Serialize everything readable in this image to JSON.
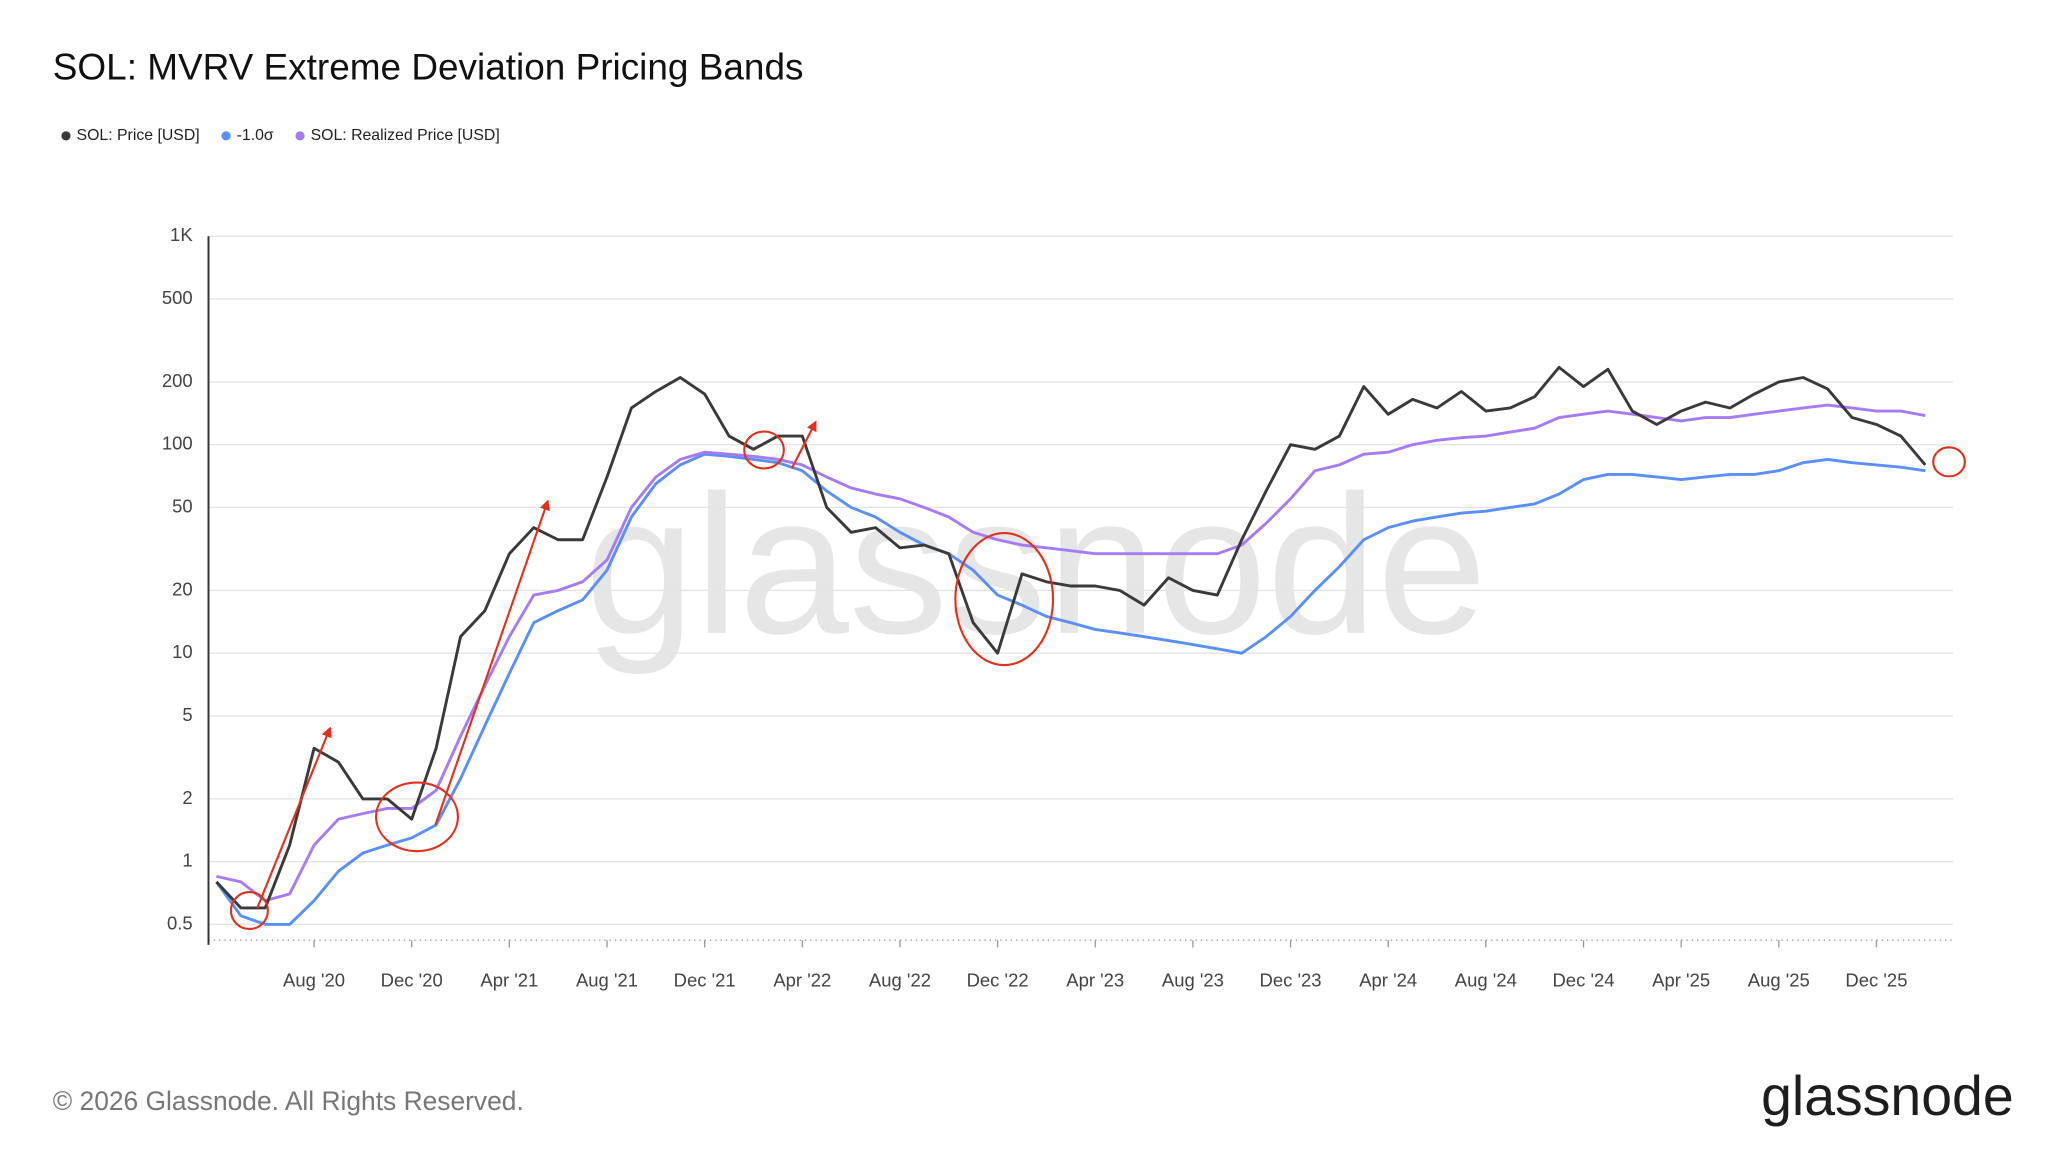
{
  "chart_data": {
    "type": "line",
    "title": "SOL: MVRV Extreme Deviation Pricing Bands",
    "watermark": "glassnode",
    "footer": "© 2026 Glassnode. All Rights Reserved.",
    "brand": "glassnode",
    "log_scale": true,
    "grid": true,
    "legend": "top-left",
    "x": [
      "2020-04",
      "2020-05",
      "2020-06",
      "2020-07",
      "2020-08",
      "2020-09",
      "2020-10",
      "2020-11",
      "2020-12",
      "2021-01",
      "2021-02",
      "2021-03",
      "2021-04",
      "2021-05",
      "2021-06",
      "2021-07",
      "2021-08",
      "2021-09",
      "2021-10",
      "2021-11",
      "2021-12",
      "2022-01",
      "2022-02",
      "2022-03",
      "2022-04",
      "2022-05",
      "2022-06",
      "2022-07",
      "2022-08",
      "2022-09",
      "2022-10",
      "2022-11",
      "2022-12",
      "2023-01",
      "2023-02",
      "2023-03",
      "2023-04",
      "2023-05",
      "2023-06",
      "2023-07",
      "2023-08",
      "2023-09",
      "2023-10",
      "2023-11",
      "2023-12",
      "2024-01",
      "2024-02",
      "2024-03",
      "2024-04",
      "2024-05",
      "2024-06",
      "2024-07",
      "2024-08",
      "2024-09",
      "2024-10",
      "2024-11",
      "2024-12",
      "2025-01",
      "2025-02",
      "2025-03",
      "2025-04",
      "2025-05",
      "2025-06",
      "2025-07",
      "2025-08",
      "2025-09",
      "2025-10",
      "2025-11",
      "2025-12",
      "2026-01",
      "2026-02"
    ],
    "xlim": [
      "2020-04",
      "2026-03"
    ],
    "xticks": [
      {
        "value": "2020-08",
        "label": "Aug '20"
      },
      {
        "value": "2020-12",
        "label": "Dec '20"
      },
      {
        "value": "2021-04",
        "label": "Apr '21"
      },
      {
        "value": "2021-08",
        "label": "Aug '21"
      },
      {
        "value": "2021-12",
        "label": "Dec '21"
      },
      {
        "value": "2022-04",
        "label": "Apr '22"
      },
      {
        "value": "2022-08",
        "label": "Aug '22"
      },
      {
        "value": "2022-12",
        "label": "Dec '22"
      },
      {
        "value": "2023-04",
        "label": "Apr '23"
      },
      {
        "value": "2023-08",
        "label": "Aug '23"
      },
      {
        "value": "2023-12",
        "label": "Dec '23"
      },
      {
        "value": "2024-04",
        "label": "Apr '24"
      },
      {
        "value": "2024-08",
        "label": "Aug '24"
      },
      {
        "value": "2024-12",
        "label": "Dec '24"
      },
      {
        "value": "2025-04",
        "label": "Apr '25"
      },
      {
        "value": "2025-08",
        "label": "Aug '25"
      },
      {
        "value": "2025-12",
        "label": "Dec '25"
      }
    ],
    "ylim": [
      0.42,
      1000
    ],
    "yticks": [
      0.5,
      1,
      2,
      5,
      10,
      20,
      50,
      100,
      200,
      500,
      {
        "value": 1000,
        "label": "1K"
      }
    ],
    "series": [
      {
        "name": "SOL: Price [USD]",
        "color": "#3a3a3a",
        "values": [
          0.8,
          0.6,
          0.6,
          1.2,
          3.5,
          3.0,
          2.0,
          2.0,
          1.6,
          3.5,
          12,
          16,
          30,
          40,
          35,
          35,
          70,
          150,
          180,
          210,
          175,
          110,
          95,
          110,
          110,
          50,
          38,
          40,
          32,
          33,
          30,
          14,
          10,
          24,
          22,
          21,
          21,
          20,
          17,
          23,
          20,
          19,
          35,
          60,
          100,
          95,
          110,
          190,
          140,
          165,
          150,
          180,
          145,
          150,
          170,
          235,
          190,
          230,
          145,
          125,
          145,
          160,
          150,
          175,
          200,
          210,
          185,
          135,
          125,
          110,
          80
        ]
      },
      {
        "name": "-1.0σ",
        "color": "#5b8ff9",
        "values": [
          0.8,
          0.55,
          0.5,
          0.5,
          0.65,
          0.9,
          1.1,
          1.2,
          1.3,
          1.5,
          2.5,
          4.5,
          8,
          14,
          16,
          18,
          25,
          45,
          65,
          80,
          90,
          88,
          85,
          82,
          75,
          60,
          50,
          45,
          38,
          33,
          30,
          25,
          19,
          17,
          15,
          14,
          13,
          12.5,
          12,
          11.5,
          11,
          10.5,
          10,
          12,
          15,
          20,
          26,
          35,
          40,
          43,
          45,
          47,
          48,
          50,
          52,
          58,
          68,
          72,
          72,
          70,
          68,
          70,
          72,
          72,
          75,
          82,
          85,
          82,
          80,
          78,
          75
        ]
      },
      {
        "name": "SOL: Realized Price [USD]",
        "color": "#a67cf5",
        "values": [
          0.85,
          0.8,
          0.65,
          0.7,
          1.2,
          1.6,
          1.7,
          1.8,
          1.8,
          2.2,
          4,
          7,
          12,
          19,
          20,
          22,
          28,
          50,
          70,
          85,
          92,
          90,
          88,
          85,
          80,
          70,
          62,
          58,
          55,
          50,
          45,
          38,
          35,
          33,
          32,
          31,
          30,
          30,
          30,
          30,
          30,
          30,
          33,
          42,
          55,
          75,
          80,
          90,
          92,
          100,
          105,
          108,
          110,
          115,
          120,
          135,
          140,
          145,
          140,
          135,
          130,
          135,
          135,
          140,
          145,
          150,
          155,
          150,
          145,
          145,
          138
        ]
      }
    ]
  }
}
